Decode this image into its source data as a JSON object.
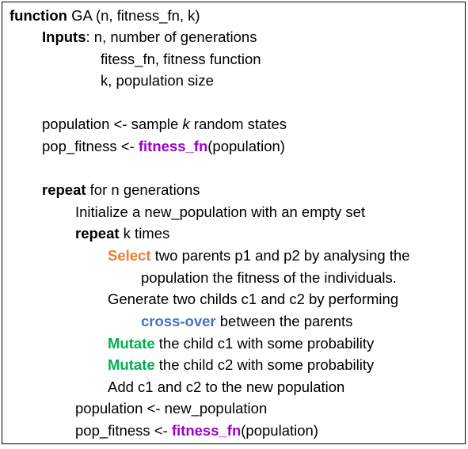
{
  "colors": {
    "text": "#000000",
    "fitness_fn": "#a000c8",
    "select": "#ed7d31",
    "crossover": "#4472c4",
    "mutate": "#00b050"
  },
  "algorithm": {
    "header": {
      "keyword": "function",
      "signature": " GA (n, fitness_fn, k)"
    },
    "inputs": {
      "keyword": "Inputs",
      "first": ": n, number of generations",
      "second": "fitess_fn, fitness function",
      "third": "k, population size"
    },
    "init": {
      "population_pre": "population <- sample ",
      "population_k": "k",
      "population_post": " random states",
      "fitness_pre": "pop_fitness <- ",
      "fitness_fn": "fitness_fn",
      "fitness_post": "(population)"
    },
    "outer_loop": {
      "keyword": "repeat",
      "rest": " for n generations",
      "initialize": "Initialize a new_population with an empty set"
    },
    "inner_loop": {
      "keyword": "repeat",
      "rest": " k times",
      "select_kw": "Select",
      "select_rest": " two parents p1 and p2 by analysing the",
      "select_cont": "population the fitness of the individuals.",
      "generate": "Generate two childs c1 and c2 by performing",
      "crossover_kw": "cross-over",
      "crossover_rest": " between the parents",
      "mutate1_kw": "Mutate",
      "mutate1_rest": " the child c1 with some probability",
      "mutate2_kw": "Mutate",
      "mutate2_rest": " the child c2 with some probability",
      "add": "Add c1 and c2 to the new population"
    },
    "update": {
      "population": "population <- new_population",
      "fitness_pre": "pop_fitness <- ",
      "fitness_fn": "fitness_fn",
      "fitness_post": "(population)"
    }
  }
}
